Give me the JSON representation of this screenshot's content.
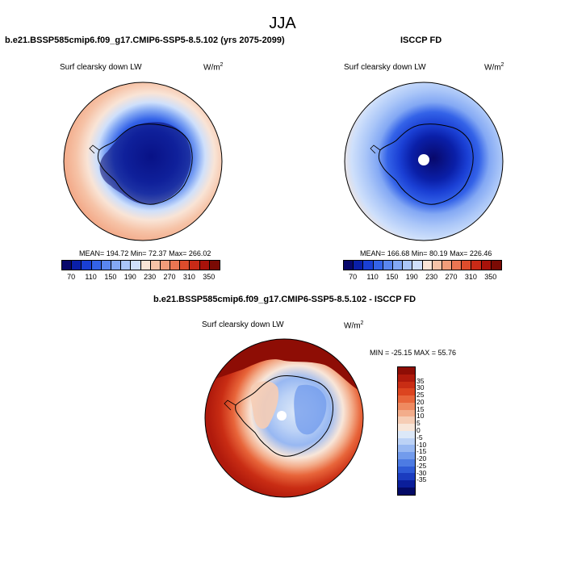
{
  "season": "JJA",
  "panels": [
    {
      "title": "b.e21.BSSP585cmip6.f09_g17.CMIP6-SSP5-8.5.102 (yrs 2075-2099)",
      "variable": "Surf clearsky down LW",
      "units_base": "W/m",
      "units_exp": "2",
      "stats": "MEAN= 194.72  Min=  72.37  Max= 266.02"
    },
    {
      "title": "ISCCP FD",
      "variable": "Surf clearsky down LW",
      "units_base": "W/m",
      "units_exp": "2",
      "stats": "MEAN= 166.68  Min=  80.19  Max= 226.46"
    },
    {
      "title": "b.e21.BSSP585cmip6.f09_g17.CMIP6-SSP5-8.5.102 - ISCCP FD",
      "variable": "Surf clearsky down LW",
      "units_base": "W/m",
      "units_exp": "2",
      "stats": "MIN = -25.15 MAX =  55.76"
    }
  ],
  "abs_colorbar": {
    "colors": [
      "#08086b",
      "#0a1fa8",
      "#1a3fd4",
      "#3463e8",
      "#5a86ef",
      "#83a8f4",
      "#aac6f8",
      "#cfe0fb",
      "#f9e4d6",
      "#f6c3a7",
      "#f19d7a",
      "#eb7552",
      "#dd4c2c",
      "#c82a17",
      "#a8120a",
      "#7a0a04"
    ],
    "ticks": [
      "70",
      "110",
      "150",
      "190",
      "230",
      "270",
      "310",
      "350"
    ]
  },
  "diff_colorbar": {
    "colors_top_to_bottom": [
      "#8e0d05",
      "#b01a0c",
      "#c92d14",
      "#dc441f",
      "#e8653a",
      "#ef8a60",
      "#f3ad8b",
      "#f6cdb5",
      "#f8e6d9",
      "#dce8f8",
      "#bcd2f6",
      "#98b8f2",
      "#729bec",
      "#4d7be3",
      "#2f5bd6",
      "#1b3cbf",
      "#0b1e9a",
      "#040a66"
    ],
    "ticks": [
      "35",
      "30",
      "25",
      "20",
      "15",
      "10",
      "5",
      "0",
      "-5",
      "-10",
      "-15",
      "-20",
      "-25",
      "-30",
      "-35"
    ]
  },
  "colors": {
    "coastline": "#000000",
    "missing": "#ffffff"
  }
}
